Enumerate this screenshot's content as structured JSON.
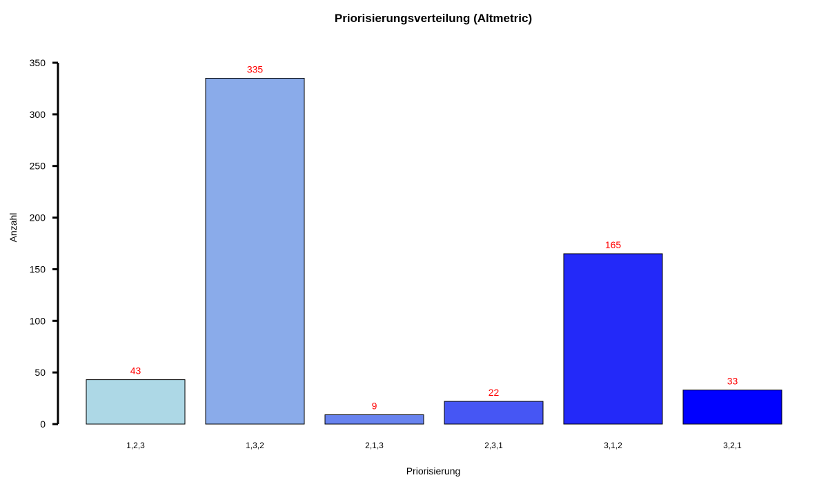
{
  "chart_data": {
    "type": "bar",
    "title": "Priorisierungsverteilung (Altmetric)",
    "xlabel": "Priorisierung",
    "ylabel": "Anzahl",
    "categories": [
      "1,2,3",
      "1,3,2",
      "2,1,3",
      "2,3,1",
      "3,1,2",
      "3,2,1"
    ],
    "values": [
      43,
      335,
      9,
      22,
      165,
      33
    ],
    "data_labels": [
      "43",
      "335",
      "9",
      "22",
      "165",
      "33"
    ],
    "bar_colors": [
      "#add8e6",
      "#8aabea",
      "#6883ef",
      "#4656f4",
      "#2329f9",
      "#0000ff"
    ],
    "data_label_color": "#ff0000",
    "ylim": [
      0,
      350
    ],
    "yticks": [
      0,
      50,
      100,
      150,
      200,
      250,
      300,
      350
    ],
    "grid": false,
    "legend": "none"
  }
}
